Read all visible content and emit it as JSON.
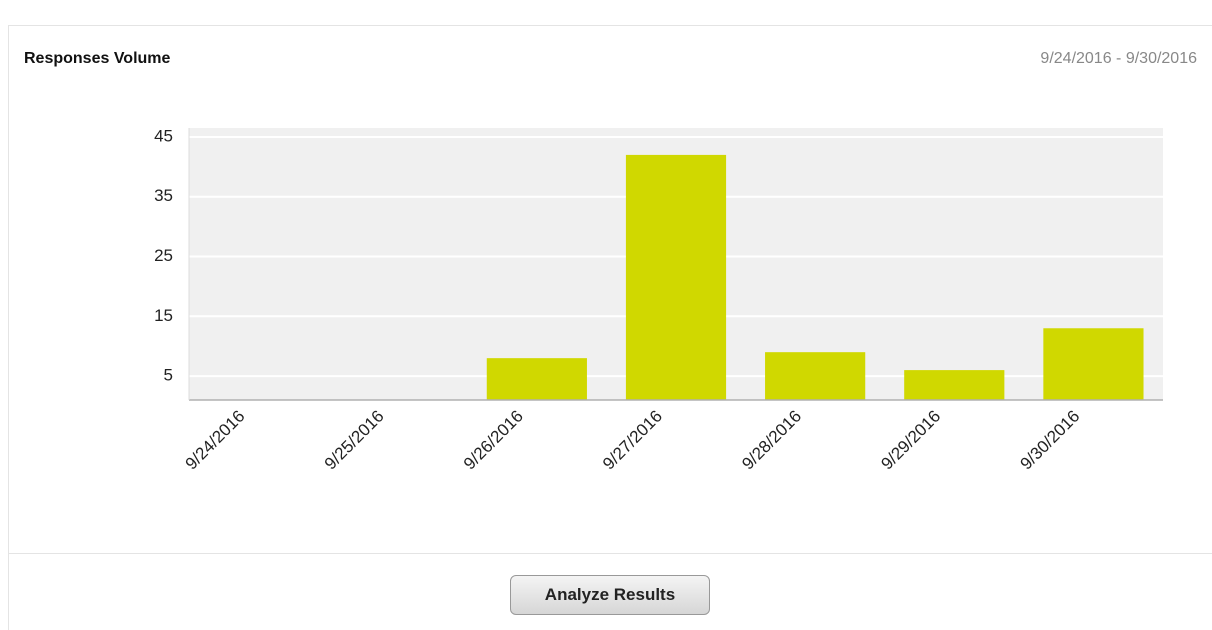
{
  "header": {
    "title": "Responses Volume",
    "date_range": "9/24/2016 - 9/30/2016"
  },
  "chart_data": {
    "type": "bar",
    "categories": [
      "9/24/2016",
      "9/25/2016",
      "9/26/2016",
      "9/27/2016",
      "9/28/2016",
      "9/29/2016",
      "9/30/2016"
    ],
    "values": [
      0,
      0,
      8,
      42,
      9,
      6,
      13
    ],
    "color": "#d0d800",
    "ylim": [
      1,
      46.5
    ],
    "yticks": [
      5,
      15,
      25,
      35,
      45
    ],
    "grid": true
  },
  "button": {
    "label": "Analyze Results"
  }
}
